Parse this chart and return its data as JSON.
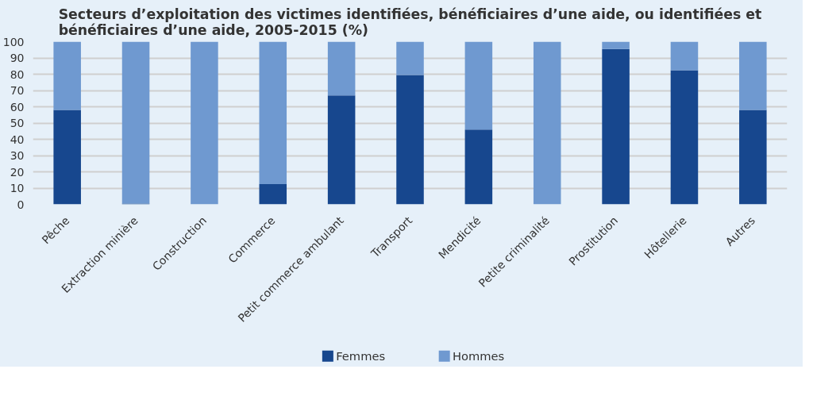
{
  "chart_data": {
    "type": "bar",
    "title": "Secteurs d’exploitation des victimes identifiées, bénéficiaires d’une aide, ou identifiées et bénéficiaires d’une aide, 2005-2015 (%)",
    "categories": [
      "Pêche",
      "Extraction minière",
      "Construction",
      "Commerce",
      "Petit commerce ambulant",
      "Transport",
      "Mendicité",
      "Petite criminalité",
      "Prostitution",
      "Hôtellerie",
      "Autres"
    ],
    "stacked": true,
    "series": [
      {
        "name": "Femmes",
        "color": "#17478e",
        "values": [
          58,
          0.5,
          0,
          12.5,
          67,
          79.5,
          46,
          0,
          95.5,
          82.5,
          58
        ]
      },
      {
        "name": "Hommes",
        "color": "#6f99d0",
        "values": [
          42,
          99.5,
          100,
          87.5,
          33,
          20.5,
          54,
          100,
          4.5,
          17.5,
          42
        ]
      }
    ],
    "ylim": [
      0,
      100
    ],
    "yticks": [
      0,
      10,
      20,
      30,
      40,
      50,
      60,
      70,
      80,
      90,
      100
    ],
    "grid": "y",
    "legend": "bottom"
  }
}
